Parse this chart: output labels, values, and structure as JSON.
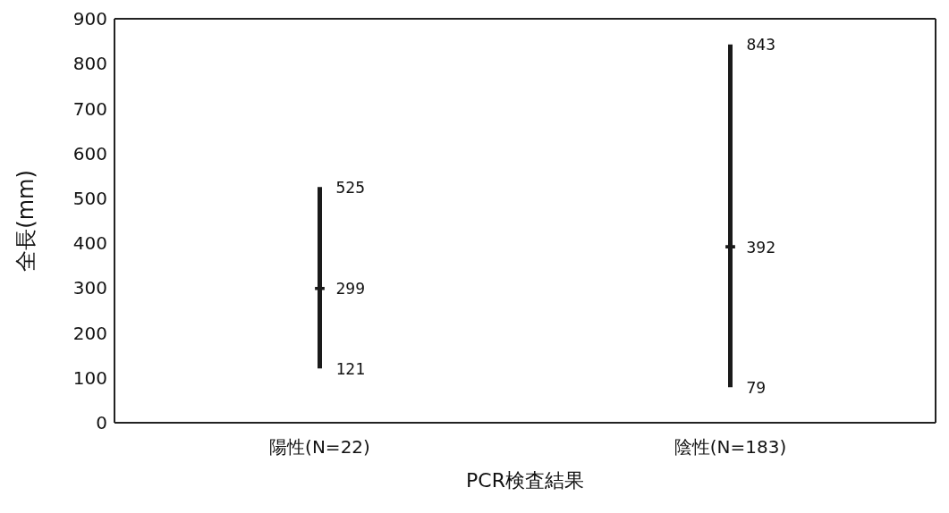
{
  "chart_data": {
    "type": "bar",
    "xlabel": "PCR検査結果",
    "ylabel": "全長(mm)",
    "categories": [
      "陽性(N=22)",
      "陰性(N=183)"
    ],
    "series": [
      {
        "color": "#1a1a1a",
        "base": [
          121,
          79
        ],
        "values": [
          404,
          764
        ]
      },
      {
        "type": "scatter",
        "color": "#1a1a1a",
        "x": [
          "陽性(N=22)",
          "陰性(N=183)"
        ],
        "values": [
          299,
          392
        ],
        "marker": "cross"
      }
    ],
    "ylim": [
      0,
      900
    ],
    "yticks": [
      0,
      100,
      200,
      300,
      400,
      500,
      600,
      700,
      800,
      900
    ],
    "grid": false,
    "legend": false,
    "annotations": [
      {
        "text": "525",
        "x": "陽性(N=22)",
        "y": 525
      },
      {
        "text": "299",
        "x": "陽性(N=22)",
        "y": 299
      },
      {
        "text": "121",
        "x": "陽性(N=22)",
        "y": 121
      },
      {
        "text": "843",
        "x": "陰性(N=183)",
        "y": 843
      },
      {
        "text": "392",
        "x": "陰性(N=183)",
        "y": 392
      },
      {
        "text": "79",
        "x": "陰性(N=183)",
        "y": 79
      }
    ]
  }
}
